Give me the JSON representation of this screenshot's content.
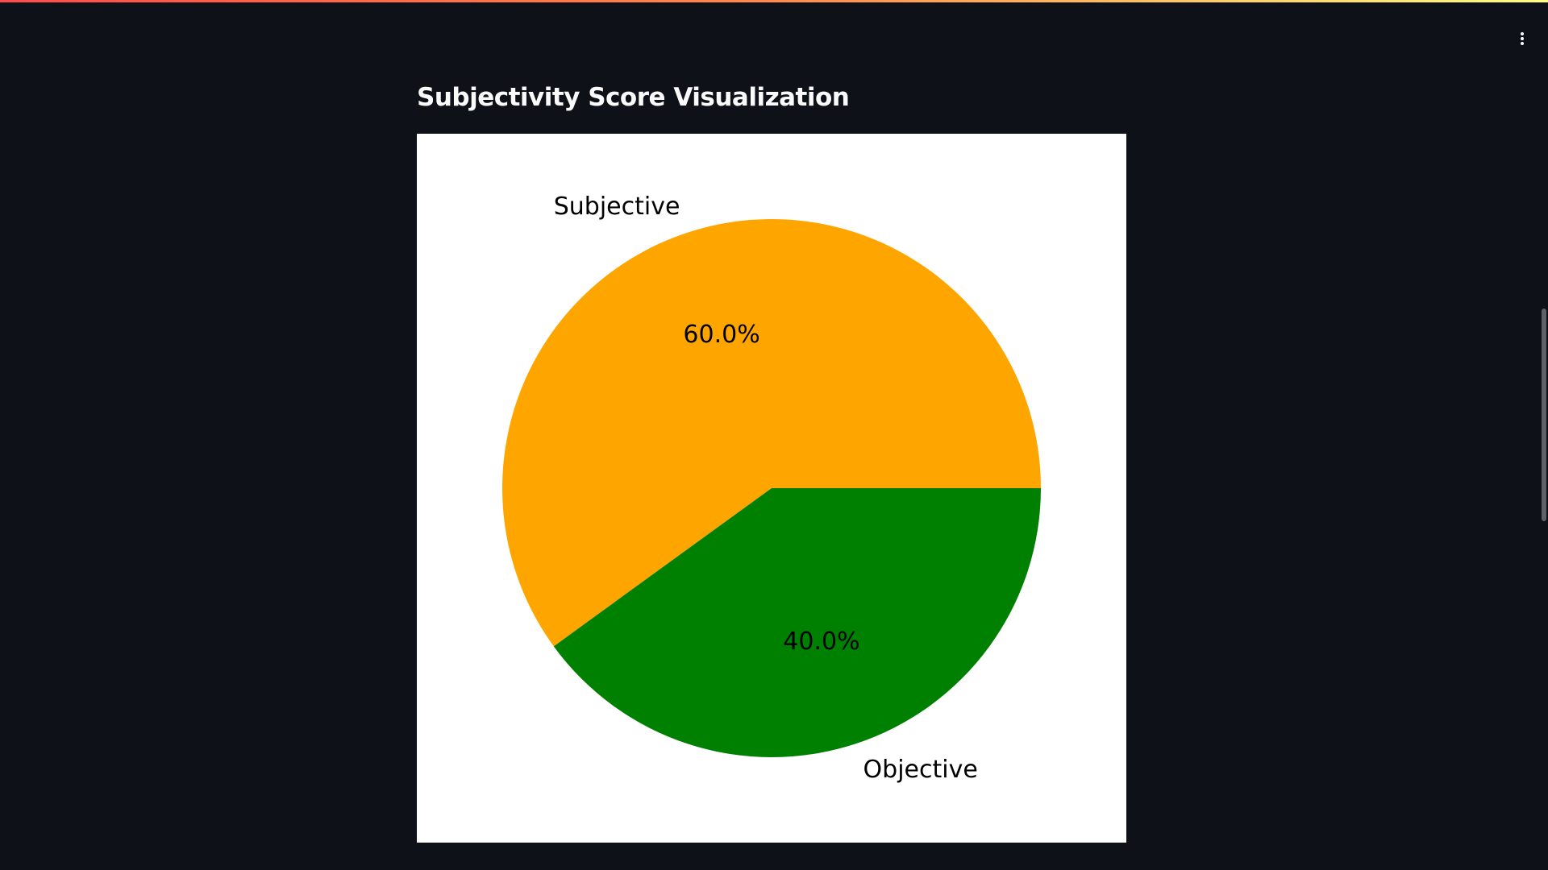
{
  "page": {
    "title": "Subjectivity Score Visualization"
  },
  "header": {
    "menu_icon": "more-vertical-icon",
    "accent_gradient": [
      "#ff4b4b",
      "#ff8a4b",
      "#fffd80"
    ]
  },
  "chart_data": {
    "type": "pie",
    "title": "",
    "slices": [
      {
        "label": "Subjective",
        "value": 60.0,
        "pct_label": "60.0%",
        "color": "#ffa500"
      },
      {
        "label": "Objective",
        "value": 40.0,
        "pct_label": "40.0%",
        "color": "#008000"
      }
    ],
    "start_angle_deg": 0,
    "direction": "counterclockwise",
    "legend": "none"
  },
  "theme": {
    "background": "#0e1117",
    "text": "#fafafa",
    "chart_background": "#ffffff"
  }
}
